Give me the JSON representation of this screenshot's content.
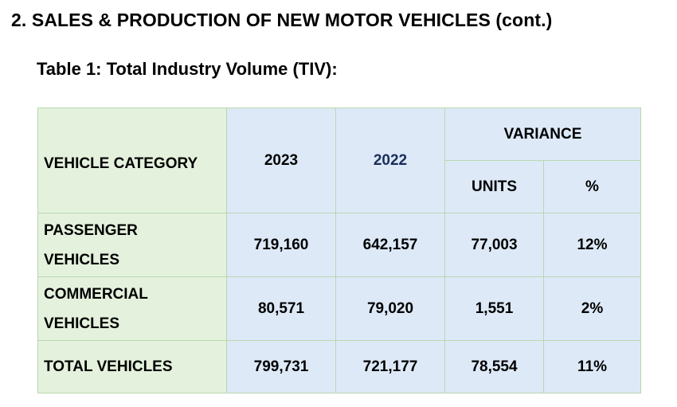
{
  "section_heading": "2. SALES & PRODUCTION OF NEW MOTOR VEHICLES (cont.)",
  "table_caption": "Table 1: Total Industry Volume (TIV):",
  "table": {
    "headers": {
      "category": "VEHICLE CATEGORY",
      "year_2023": "2023",
      "year_2022": "2022",
      "variance": "VARIANCE",
      "units": "UNITS",
      "percent": "%"
    },
    "rows": [
      {
        "category_line1": "PASSENGER",
        "category_line2": "VEHICLES",
        "y2023": "719,160",
        "y2022": "642,157",
        "units": "77,003",
        "percent": "12%"
      },
      {
        "category_line1": "COMMERCIAL",
        "category_line2": "VEHICLES",
        "y2023": "80,571",
        "y2022": "79,020",
        "units": "1,551",
        "percent": "2%"
      },
      {
        "category_line1": "TOTAL VEHICLES",
        "y2023": "799,731",
        "y2022": "721,177",
        "units": "78,554",
        "percent": "11%"
      }
    ]
  },
  "colors": {
    "category_fill": "#e4f2dd",
    "value_fill": "#dde9f7",
    "border": "#b9d7b0",
    "year_2022_text": "#1a2e5a"
  }
}
